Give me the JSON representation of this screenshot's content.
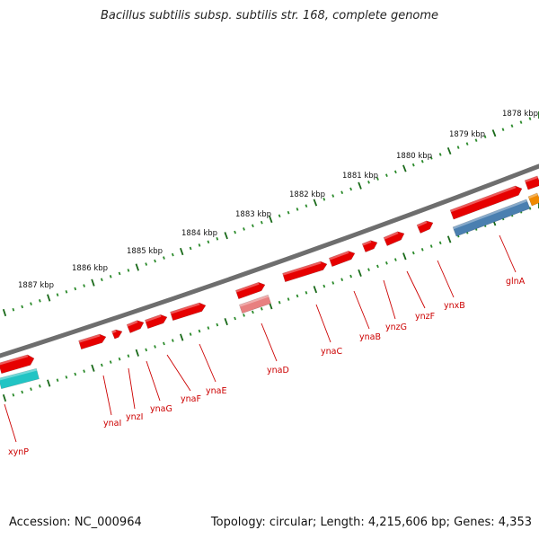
{
  "title": "Bacillus subtilis subsp. subtilis str. 168, complete genome",
  "footer": {
    "accession": "Accession: NC_000964",
    "summary": "Topology: circular; Length: 4,215,606 bp; Genes: 4,353"
  },
  "colors": {
    "backbone": "#6e6e6e",
    "gene_forward": "#e60000",
    "gene_highlight_pink": "#e88080",
    "gene_cyan": "#22c4c4",
    "gene_blue": "#4a7fb0",
    "gene_orange": "#f08a00",
    "tick_minor": "#2a8a2a",
    "tick_major": "#1a6a1a",
    "label_red": "#cc0000"
  },
  "scale": {
    "unit": "kbp",
    "ticks": [
      "1878 kbp",
      "1879 kbp",
      "1880 kbp",
      "1881 kbp",
      "1882 kbp",
      "1883 kbp",
      "1884 kbp",
      "1885 kbp",
      "1886 kbp",
      "1887 kbp"
    ]
  },
  "genes": [
    {
      "name": "xynP"
    },
    {
      "name": "ynaI"
    },
    {
      "name": "ynzI"
    },
    {
      "name": "ynaG"
    },
    {
      "name": "ynaF"
    },
    {
      "name": "ynaE"
    },
    {
      "name": "ynaD"
    },
    {
      "name": "ynaC"
    },
    {
      "name": "ynaB"
    },
    {
      "name": "ynzG"
    },
    {
      "name": "ynzF"
    },
    {
      "name": "ynxB"
    },
    {
      "name": "glnA"
    }
  ]
}
